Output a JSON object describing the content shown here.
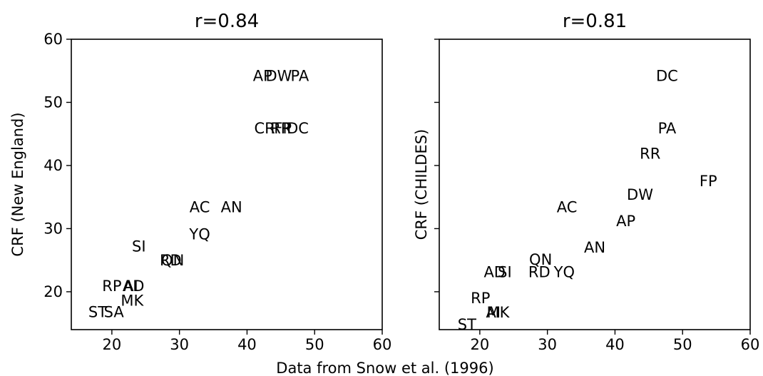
{
  "chart_data": [
    {
      "type": "scatter",
      "title": "r=0.84",
      "xlabel": "",
      "ylabel": "CRF (New England)",
      "xlim": [
        14,
        60
      ],
      "ylim": [
        14,
        60
      ],
      "xticks": [
        "20",
        "30",
        "40",
        "50",
        "60"
      ],
      "yticks": [
        "20",
        "30",
        "40",
        "50",
        "60"
      ],
      "points": [
        {
          "label": "AP",
          "x": 42.3,
          "y": 54.3
        },
        {
          "label": "DW",
          "x": 44.7,
          "y": 54.3
        },
        {
          "label": "PA",
          "x": 47.8,
          "y": 54.3
        },
        {
          "label": "CR",
          "x": 42.6,
          "y": 46.0
        },
        {
          "label": "RR",
          "x": 45.0,
          "y": 46.0
        },
        {
          "label": "FP",
          "x": 45.3,
          "y": 46.0
        },
        {
          "label": "DC",
          "x": 47.5,
          "y": 46.0
        },
        {
          "label": "AC",
          "x": 33.0,
          "y": 33.5
        },
        {
          "label": "AN",
          "x": 37.7,
          "y": 33.5
        },
        {
          "label": "YQ",
          "x": 33.0,
          "y": 29.2
        },
        {
          "label": "SI",
          "x": 24.0,
          "y": 27.3
        },
        {
          "label": "RD",
          "x": 28.7,
          "y": 25.1
        },
        {
          "label": "QN",
          "x": 29.0,
          "y": 25.1
        },
        {
          "label": "RP",
          "x": 20.0,
          "y": 21.0
        },
        {
          "label": "AI",
          "x": 22.8,
          "y": 21.0
        },
        {
          "label": "AD",
          "x": 23.2,
          "y": 21.0
        },
        {
          "label": "MK",
          "x": 23.0,
          "y": 18.7
        },
        {
          "label": "ST",
          "x": 17.9,
          "y": 16.9
        },
        {
          "label": "SA",
          "x": 20.3,
          "y": 16.9
        }
      ]
    },
    {
      "type": "scatter",
      "title": "r=0.81",
      "xlabel": "",
      "ylabel": "CRF (CHILDES)",
      "xlim": [
        14,
        60
      ],
      "ylim": [
        14,
        60
      ],
      "xticks": [
        "20",
        "30",
        "40",
        "50",
        "60"
      ],
      "yticks": [],
      "points": [
        {
          "label": "DC",
          "x": 47.7,
          "y": 54.3
        },
        {
          "label": "PA",
          "x": 47.7,
          "y": 46.0
        },
        {
          "label": "RR",
          "x": 45.2,
          "y": 42.0
        },
        {
          "label": "FP",
          "x": 53.8,
          "y": 37.6
        },
        {
          "label": "DW",
          "x": 43.7,
          "y": 35.5
        },
        {
          "label": "AP",
          "x": 41.6,
          "y": 31.3
        },
        {
          "label": "AC",
          "x": 32.9,
          "y": 33.5
        },
        {
          "label": "AN",
          "x": 37.0,
          "y": 27.1
        },
        {
          "label": "QN",
          "x": 29.0,
          "y": 25.2
        },
        {
          "label": "RD",
          "x": 28.8,
          "y": 23.2
        },
        {
          "label": "YQ",
          "x": 32.5,
          "y": 23.2
        },
        {
          "label": "AD",
          "x": 22.2,
          "y": 23.2
        },
        {
          "label": "SI",
          "x": 23.7,
          "y": 23.2
        },
        {
          "label": "RP",
          "x": 20.1,
          "y": 19.1
        },
        {
          "label": "AI",
          "x": 22.0,
          "y": 16.8
        },
        {
          "label": "MK",
          "x": 22.7,
          "y": 16.8
        },
        {
          "label": "ST",
          "x": 18.1,
          "y": 14.9
        }
      ]
    }
  ],
  "shared_xlabel": "Data from Snow et al. (1996)"
}
